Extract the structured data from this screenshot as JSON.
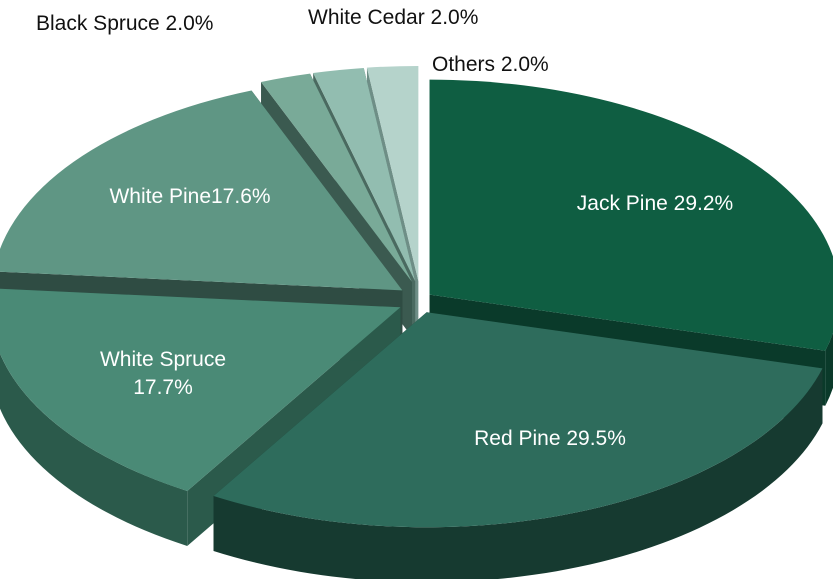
{
  "chart_data": {
    "type": "pie",
    "style": "3d-exploded",
    "title": "",
    "slices": [
      {
        "name": "Jack Pine",
        "value": 29.2,
        "label": "Jack Pine 29.2%",
        "color": "#0f5e42",
        "side_color": "#0a3a2a"
      },
      {
        "name": "Red Pine",
        "value": 29.5,
        "label": "Red Pine 29.5%",
        "color": "#2e6c5c",
        "side_color": "#163a30"
      },
      {
        "name": "White Spruce",
        "value": 17.7,
        "label": "White Spruce 17.7%",
        "label_lines": [
          "White Spruce",
          "17.7%"
        ],
        "color": "#4a8a76",
        "side_color": "#2b5a4b"
      },
      {
        "name": "White Pine",
        "value": 17.6,
        "label": "White Pine17.6%",
        "color": "#5f9684",
        "side_color": "#2f4c43"
      },
      {
        "name": "Black Spruce",
        "value": 2.0,
        "label": "Black Spruce 2.0%",
        "color": "#79aa98",
        "side_color": "#3b5a50"
      },
      {
        "name": "White Cedar",
        "value": 2.0,
        "label": "White Cedar 2.0%",
        "color": "#92bdb0",
        "side_color": "#4a6a60"
      },
      {
        "name": "Others",
        "value": 2.0,
        "label": "Others 2.0%",
        "color": "#b5d3cb",
        "side_color": "#6e8e86"
      }
    ]
  }
}
